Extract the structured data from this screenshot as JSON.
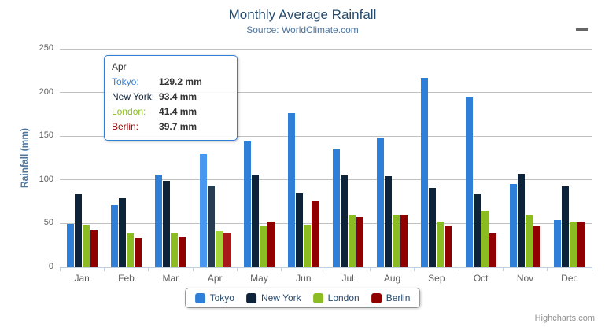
{
  "header": {
    "title": "Monthly Average Rainfall",
    "subtitle": "Source: WorldClimate.com"
  },
  "y_axis": {
    "title": "Rainfall (mm)",
    "tick_values": [
      0,
      50,
      100,
      150,
      200,
      250
    ]
  },
  "chart_data": {
    "type": "bar",
    "title": "Monthly Average Rainfall",
    "subtitle": "Source: WorldClimate.com",
    "categories": [
      "Jan",
      "Feb",
      "Mar",
      "Apr",
      "May",
      "Jun",
      "Jul",
      "Aug",
      "Sep",
      "Oct",
      "Nov",
      "Dec"
    ],
    "series": [
      {
        "name": "Tokyo",
        "color": "#2f7ed8",
        "values": [
          49.9,
          71.5,
          106.4,
          129.2,
          144.0,
          176.0,
          135.6,
          148.5,
          216.4,
          194.1,
          95.6,
          54.4
        ]
      },
      {
        "name": "New York",
        "color": "#0d233a",
        "values": [
          83.6,
          78.8,
          98.5,
          93.4,
          106.0,
          84.5,
          105.0,
          104.3,
          91.2,
          83.5,
          106.6,
          92.3
        ]
      },
      {
        "name": "London",
        "color": "#8bbc21",
        "values": [
          48.9,
          38.8,
          39.3,
          41.4,
          47.0,
          48.3,
          59.0,
          59.6,
          52.4,
          65.2,
          59.3,
          51.2
        ]
      },
      {
        "name": "Berlin",
        "color": "#910000",
        "values": [
          42.4,
          33.2,
          34.5,
          39.7,
          52.6,
          75.5,
          57.4,
          60.4,
          47.6,
          39.1,
          46.8,
          51.1
        ]
      }
    ],
    "xlabel": "",
    "ylabel": "Rainfall (mm)",
    "ylim": [
      0,
      250
    ],
    "grid": true,
    "legend_position": "bottom"
  },
  "tooltip": {
    "category": "Apr",
    "category_index": 3,
    "rows": [
      {
        "label": "Tokyo:",
        "value": "129.2 mm",
        "color": "#2f7ed8"
      },
      {
        "label": "New York:",
        "value": "93.4 mm",
        "color": "#0d233a"
      },
      {
        "label": "London:",
        "value": "41.4 mm",
        "color": "#8bbc21"
      },
      {
        "label": "Berlin:",
        "value": "39.7 mm",
        "color": "#910000"
      }
    ]
  },
  "legend": {
    "items": [
      "Tokyo",
      "New York",
      "London",
      "Berlin"
    ]
  },
  "credits": {
    "label": "Highcharts.com"
  },
  "colors": {
    "title_text": "#274b6d",
    "subtitle_text": "#4d759e",
    "axis_label": "#606060",
    "axis_title": "#4d759e",
    "gridline": "#c0c0c0",
    "axis_line": "#c0d0e0",
    "legend_text": "#274b6d",
    "legend_border": "#909090",
    "tooltip_border": "#2f7ed8",
    "credits_text": "#909090"
  }
}
